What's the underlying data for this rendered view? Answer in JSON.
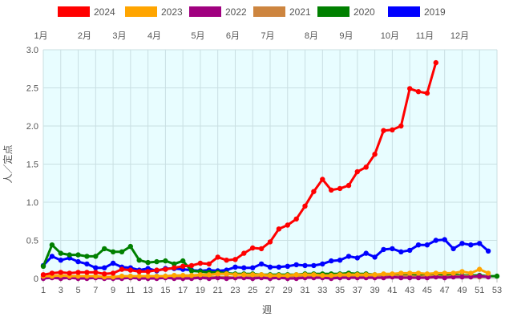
{
  "chart_data": {
    "type": "line",
    "title": "",
    "xlabel": "週",
    "ylabel": "人／定点",
    "xlim": [
      1,
      53
    ],
    "ylim": [
      0,
      3.0
    ],
    "y_ticks": [
      "0",
      "0.5",
      "1.0",
      "1.5",
      "2.0",
      "2.5",
      "3.0"
    ],
    "y_tick_values": [
      0,
      0.5,
      1.0,
      1.5,
      2.0,
      2.5,
      3.0
    ],
    "x_ticks": [
      1,
      3,
      5,
      7,
      9,
      11,
      13,
      15,
      17,
      19,
      21,
      23,
      25,
      27,
      29,
      31,
      33,
      35,
      37,
      39,
      41,
      43,
      45,
      47,
      49,
      51,
      53
    ],
    "months": [
      {
        "label": "1月",
        "week": 1
      },
      {
        "label": "2月",
        "week": 6
      },
      {
        "label": "3月",
        "week": 10
      },
      {
        "label": "4月",
        "week": 14
      },
      {
        "label": "5月",
        "week": 19
      },
      {
        "label": "6月",
        "week": 23
      },
      {
        "label": "7月",
        "week": 27
      },
      {
        "label": "8月",
        "week": 32
      },
      {
        "label": "9月",
        "week": 36
      },
      {
        "label": "10月",
        "week": 41
      },
      {
        "label": "11月",
        "week": 45
      },
      {
        "label": "12月",
        "week": 49
      }
    ],
    "grid": true,
    "legend_position": "top",
    "plot_background": "#e8fdff",
    "series": [
      {
        "name": "2024",
        "color": "#ff0000",
        "x": [
          1,
          2,
          3,
          4,
          5,
          6,
          7,
          8,
          9,
          10,
          11,
          12,
          13,
          14,
          15,
          16,
          17,
          18,
          19,
          20,
          21,
          22,
          23,
          24,
          25,
          26,
          27,
          28,
          29,
          30,
          31,
          32,
          33,
          34,
          35,
          36,
          37,
          38,
          39,
          40,
          41,
          42,
          43,
          44,
          45,
          46
        ],
        "values": [
          0.05,
          0.07,
          0.08,
          0.07,
          0.08,
          0.08,
          0.08,
          0.06,
          0.07,
          0.12,
          0.11,
          0.09,
          0.09,
          0.11,
          0.12,
          0.14,
          0.16,
          0.17,
          0.2,
          0.19,
          0.28,
          0.24,
          0.25,
          0.33,
          0.4,
          0.39,
          0.48,
          0.65,
          0.7,
          0.78,
          0.95,
          1.14,
          1.3,
          1.16,
          1.18,
          1.22,
          1.4,
          1.46,
          1.63,
          1.94,
          1.95,
          2.0,
          2.49,
          2.45,
          2.43,
          2.83
        ]
      },
      {
        "name": "2023",
        "color": "#ffa500",
        "x": [
          1,
          2,
          3,
          4,
          5,
          6,
          7,
          8,
          9,
          10,
          11,
          12,
          13,
          14,
          15,
          16,
          17,
          18,
          19,
          20,
          21,
          22,
          23,
          24,
          25,
          26,
          27,
          28,
          29,
          30,
          31,
          32,
          33,
          34,
          35,
          36,
          37,
          38,
          39,
          40,
          41,
          42,
          43,
          44,
          45,
          46,
          47,
          48,
          49,
          50,
          51,
          52
        ],
        "values": [
          0.03,
          0.03,
          0.04,
          0.03,
          0.03,
          0.03,
          0.03,
          0.02,
          0.02,
          0.03,
          0.03,
          0.03,
          0.03,
          0.03,
          0.03,
          0.04,
          0.04,
          0.04,
          0.05,
          0.05,
          0.06,
          0.06,
          0.05,
          0.05,
          0.05,
          0.05,
          0.04,
          0.04,
          0.04,
          0.05,
          0.05,
          0.05,
          0.04,
          0.04,
          0.05,
          0.05,
          0.05,
          0.05,
          0.05,
          0.06,
          0.06,
          0.07,
          0.07,
          0.07,
          0.06,
          0.07,
          0.07,
          0.07,
          0.09,
          0.07,
          0.12,
          0.07
        ]
      },
      {
        "name": "2022",
        "color": "#a0007f",
        "x": [
          1,
          2,
          3,
          4,
          5,
          6,
          7,
          8,
          9,
          10,
          11,
          12,
          13,
          14,
          15,
          16,
          17,
          18,
          19,
          20,
          21,
          22,
          23,
          24,
          25,
          26,
          27,
          28,
          29,
          30,
          31,
          32,
          33,
          34,
          35,
          36,
          37,
          38,
          39,
          40,
          41,
          42,
          43,
          44,
          45,
          46,
          47,
          48,
          49,
          50,
          51,
          52
        ],
        "values": [
          0.0,
          0.01,
          0.0,
          0.01,
          0.0,
          0.0,
          0.01,
          0.0,
          0.0,
          0.0,
          0.01,
          0.0,
          0.0,
          0.0,
          0.01,
          0.0,
          0.0,
          0.0,
          0.01,
          0.0,
          0.01,
          0.0,
          0.01,
          0.01,
          0.0,
          0.01,
          0.0,
          0.01,
          0.0,
          0.0,
          0.01,
          0.01,
          0.01,
          0.0,
          0.01,
          0.01,
          0.01,
          0.01,
          0.01,
          0.01,
          0.02,
          0.01,
          0.01,
          0.01,
          0.01,
          0.02,
          0.01,
          0.02,
          0.02,
          0.02,
          0.03,
          0.02
        ]
      },
      {
        "name": "2021",
        "color": "#cd853f",
        "x": [
          1,
          2,
          3,
          4,
          5,
          6,
          7,
          8,
          9,
          10,
          11,
          12,
          13,
          14,
          15,
          16,
          17,
          18,
          19,
          20,
          21,
          22,
          23,
          24,
          25,
          26,
          27,
          28,
          29,
          30,
          31,
          32,
          33,
          34,
          35,
          36,
          37,
          38,
          39,
          40,
          41,
          42,
          43,
          44,
          45,
          46,
          47,
          48,
          49,
          50,
          51,
          52
        ],
        "values": [
          0.02,
          0.02,
          0.02,
          0.02,
          0.01,
          0.02,
          0.02,
          0.01,
          0.02,
          0.02,
          0.01,
          0.02,
          0.01,
          0.02,
          0.02,
          0.01,
          0.02,
          0.01,
          0.02,
          0.02,
          0.02,
          0.02,
          0.01,
          0.02,
          0.02,
          0.02,
          0.01,
          0.02,
          0.02,
          0.02,
          0.03,
          0.02,
          0.02,
          0.03,
          0.02,
          0.03,
          0.03,
          0.02,
          0.03,
          0.03,
          0.03,
          0.03,
          0.03,
          0.02,
          0.03,
          0.03,
          0.02,
          0.03,
          0.03,
          0.03,
          0.02,
          0.03
        ]
      },
      {
        "name": "2020",
        "color": "#008000",
        "x": [
          1,
          2,
          3,
          4,
          5,
          6,
          7,
          8,
          9,
          10,
          11,
          12,
          13,
          14,
          15,
          16,
          17,
          18,
          19,
          20,
          21,
          22,
          23,
          24,
          25,
          26,
          27,
          28,
          29,
          30,
          31,
          32,
          33,
          34,
          35,
          36,
          37,
          38,
          39,
          40,
          41,
          42,
          43,
          44,
          45,
          46,
          47,
          48,
          49,
          50,
          51,
          52,
          53
        ],
        "values": [
          0.16,
          0.44,
          0.33,
          0.31,
          0.31,
          0.29,
          0.29,
          0.39,
          0.35,
          0.35,
          0.42,
          0.24,
          0.21,
          0.22,
          0.23,
          0.19,
          0.23,
          0.1,
          0.09,
          0.08,
          0.08,
          0.07,
          0.06,
          0.06,
          0.06,
          0.05,
          0.05,
          0.05,
          0.05,
          0.05,
          0.06,
          0.06,
          0.06,
          0.06,
          0.06,
          0.07,
          0.06,
          0.06,
          0.05,
          0.05,
          0.05,
          0.05,
          0.05,
          0.05,
          0.05,
          0.05,
          0.05,
          0.05,
          0.04,
          0.04,
          0.04,
          0.03,
          0.03
        ]
      },
      {
        "name": "2019",
        "color": "#0000ff",
        "x": [
          1,
          2,
          3,
          4,
          5,
          6,
          7,
          8,
          9,
          10,
          11,
          12,
          13,
          14,
          15,
          16,
          17,
          18,
          19,
          20,
          21,
          22,
          23,
          24,
          25,
          26,
          27,
          28,
          29,
          30,
          31,
          32,
          33,
          34,
          35,
          36,
          37,
          38,
          39,
          40,
          41,
          42,
          43,
          44,
          45,
          46,
          47,
          48,
          49,
          50,
          51,
          52
        ],
        "values": [
          0.17,
          0.29,
          0.24,
          0.27,
          0.22,
          0.19,
          0.14,
          0.14,
          0.2,
          0.15,
          0.14,
          0.11,
          0.13,
          0.1,
          0.13,
          0.13,
          0.12,
          0.11,
          0.1,
          0.11,
          0.1,
          0.11,
          0.15,
          0.14,
          0.14,
          0.19,
          0.15,
          0.15,
          0.16,
          0.18,
          0.17,
          0.17,
          0.19,
          0.23,
          0.24,
          0.29,
          0.27,
          0.33,
          0.28,
          0.38,
          0.39,
          0.35,
          0.37,
          0.44,
          0.44,
          0.5,
          0.51,
          0.39,
          0.46,
          0.44,
          0.46,
          0.36
        ]
      }
    ]
  }
}
